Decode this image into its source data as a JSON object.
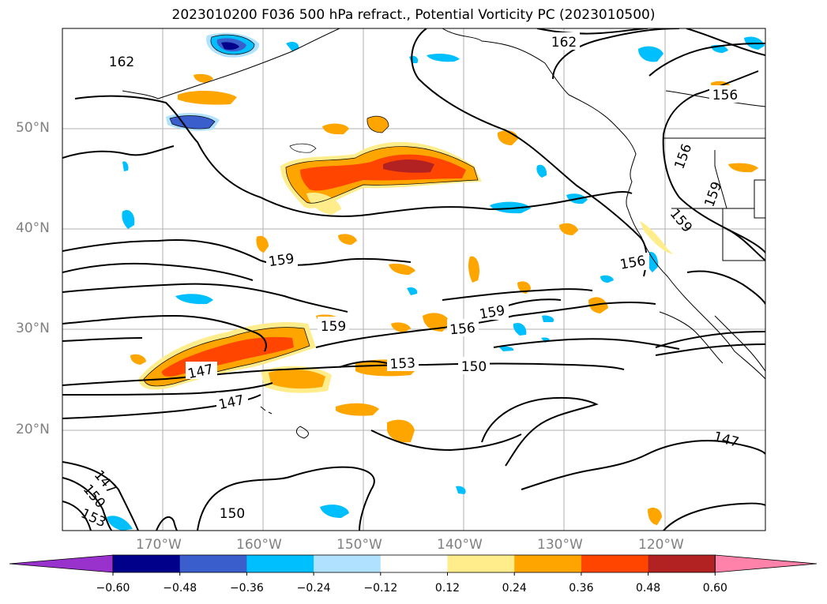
{
  "title": "2023010200 F036 500 hPa refract., Potential Vorticity PC (2023010500)",
  "lat_labels": [
    "50°N",
    "40°N",
    "30°N",
    "20°N"
  ],
  "lon_labels": [
    "170°W",
    "160°W",
    "150°W",
    "140°W",
    "130°W",
    "120°W"
  ],
  "contour_labels": [
    "162",
    "162",
    "156",
    "156",
    "159",
    "159",
    "159",
    "156",
    "159",
    "156",
    "159",
    "153",
    "150",
    "147",
    "147",
    "147",
    "150",
    "153",
    "150",
    "147"
  ],
  "colorbar": {
    "colors": [
      "#9932cc",
      "#00008b",
      "#3a5fcd",
      "#00bfff",
      "#b0e2ff",
      "#ffffff",
      "#ffec8b",
      "#ffa500",
      "#ff4500",
      "#b22222",
      "#ff82ab"
    ],
    "tick_labels": [
      "−0.60",
      "−0.48",
      "−0.36",
      "−0.24",
      "−0.12",
      "0.12",
      "0.24",
      "0.36",
      "0.48",
      "0.60"
    ]
  }
}
